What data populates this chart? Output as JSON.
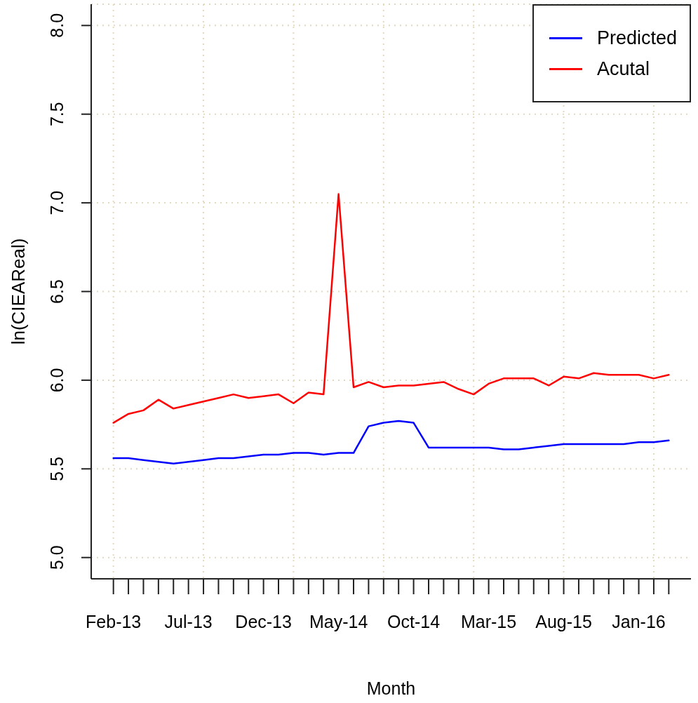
{
  "chart_data": {
    "type": "line",
    "xlabel": "Month",
    "ylabel": "ln(CIEAReal)",
    "categories": [
      "Feb-13",
      null,
      null,
      null,
      null,
      "Jul-13",
      null,
      null,
      null,
      null,
      "Dec-13",
      null,
      null,
      null,
      null,
      "May-14",
      null,
      null,
      null,
      null,
      "Oct-14",
      null,
      null,
      null,
      null,
      "Mar-15",
      null,
      null,
      null,
      null,
      "Aug-15",
      null,
      null,
      null,
      null,
      "Jan-16",
      null,
      null
    ],
    "series": [
      {
        "name": "Predicted",
        "color": "#0000ff",
        "values": [
          5.56,
          5.56,
          5.55,
          5.54,
          5.53,
          5.54,
          5.55,
          5.56,
          5.56,
          5.57,
          5.58,
          5.58,
          5.59,
          5.59,
          5.58,
          5.59,
          5.59,
          5.74,
          5.76,
          5.77,
          5.76,
          5.62,
          5.62,
          5.62,
          5.62,
          5.62,
          5.61,
          5.61,
          5.62,
          5.63,
          5.64,
          5.64,
          5.64,
          5.64,
          5.64,
          5.65,
          5.65,
          5.66
        ]
      },
      {
        "name": "Acutal",
        "color": "#ff0000",
        "values": [
          5.76,
          5.81,
          5.83,
          5.89,
          5.84,
          5.86,
          5.88,
          5.9,
          5.92,
          5.9,
          5.91,
          5.92,
          5.87,
          5.93,
          5.92,
          7.05,
          5.96,
          5.99,
          5.96,
          5.97,
          5.97,
          5.98,
          5.99,
          5.95,
          5.92,
          5.98,
          6.01,
          6.01,
          6.01,
          5.97,
          6.02,
          6.01,
          6.04,
          6.03,
          6.03,
          6.03,
          6.01,
          6.03
        ]
      }
    ],
    "ylim": [
      4.88,
      8.12
    ],
    "yticks": [
      {
        "value": 5,
        "label": "5.0"
      },
      5.5,
      {
        "value": 6,
        "label": "6.0"
      },
      6.5,
      {
        "value": 7,
        "label": "7.0"
      },
      7.5,
      {
        "value": 8,
        "label": "8.0"
      }
    ],
    "grid": true,
    "legend": "top right"
  }
}
